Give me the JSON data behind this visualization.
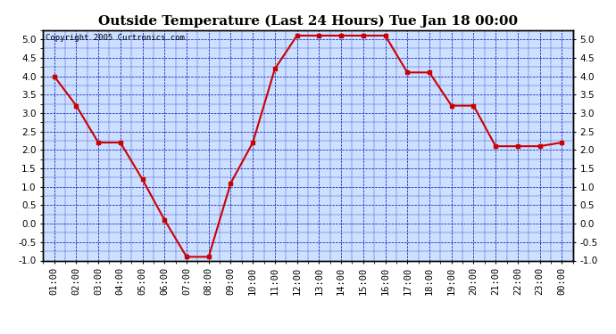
{
  "title": "Outside Temperature (Last 24 Hours) Tue Jan 18 00:00",
  "copyright_text": "Copyright 2005 Curtronics.com",
  "x_labels": [
    "01:00",
    "02:00",
    "03:00",
    "04:00",
    "05:00",
    "06:00",
    "07:00",
    "08:00",
    "09:00",
    "10:00",
    "11:00",
    "12:00",
    "13:00",
    "14:00",
    "15:00",
    "16:00",
    "17:00",
    "18:00",
    "19:00",
    "20:00",
    "21:00",
    "22:00",
    "23:00",
    "00:00"
  ],
  "x_values": [
    1,
    2,
    3,
    4,
    5,
    6,
    7,
    8,
    9,
    10,
    11,
    12,
    13,
    14,
    15,
    16,
    17,
    18,
    19,
    20,
    21,
    22,
    23,
    24
  ],
  "y_values": [
    4.0,
    3.2,
    2.2,
    2.2,
    1.2,
    0.1,
    -0.9,
    -0.9,
    1.1,
    2.2,
    4.2,
    5.1,
    5.1,
    5.1,
    5.1,
    5.1,
    4.1,
    4.1,
    3.2,
    3.2,
    2.1,
    2.1,
    2.1,
    2.2
  ],
  "ylim": [
    -1.0,
    5.25
  ],
  "yticks": [
    -1.0,
    -0.5,
    0.0,
    0.5,
    1.0,
    1.5,
    2.0,
    2.5,
    3.0,
    3.5,
    4.0,
    4.5,
    5.0
  ],
  "line_color": "#cc0000",
  "marker_color": "#cc0000",
  "fig_bg_color": "#ffffff",
  "plot_bg_color": "#cce0ff",
  "grid_color": "#0000bb",
  "border_color": "#000000",
  "title_fontsize": 11,
  "copyright_fontsize": 6.5,
  "tick_label_fontsize": 7.5
}
